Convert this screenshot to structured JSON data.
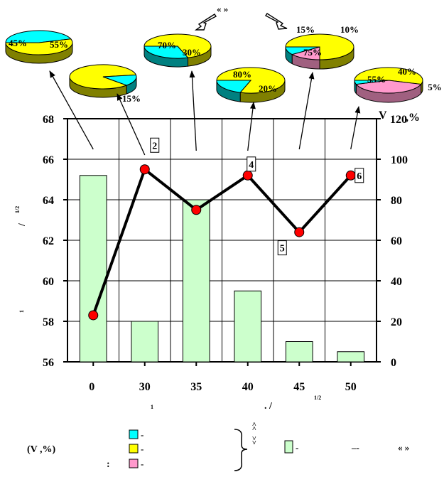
{
  "chart_data": {
    "type": "bar+line",
    "categories": [
      "0",
      "30",
      "35",
      "40",
      "45",
      "50"
    ],
    "left_axis": {
      "ticks": [
        "56",
        "58",
        "60",
        "62",
        "64",
        "66",
        "68"
      ],
      "ylim": [
        56,
        68
      ]
    },
    "right_axis": {
      "ticks": [
        "0",
        "20",
        "40",
        "60",
        "80",
        "100",
        "120"
      ],
      "ylim": [
        0,
        120
      ],
      "label": "V, %"
    },
    "bars": [
      92,
      20,
      80,
      35,
      10,
      5
    ],
    "line": [
      58.3,
      65.5,
      63.5,
      65.2,
      62.4,
      65.2
    ],
    "point_labels": [
      "2",
      "4",
      "5",
      "6"
    ],
    "pies": [
      {
        "cat": "0",
        "slices": [
          {
            "value": 45,
            "label": "45%",
            "color": "#00ffff"
          },
          {
            "value": 55,
            "label": "55%",
            "color": "#ffff00"
          }
        ]
      },
      {
        "cat": "30",
        "slices": [
          {
            "value": 85,
            "label": "",
            "color": "#ffff00"
          },
          {
            "value": 15,
            "label": "15%",
            "color": "#00ffff"
          }
        ]
      },
      {
        "cat": "35",
        "slices": [
          {
            "value": 70,
            "label": "70%",
            "color": "#ffff00"
          },
          {
            "value": 30,
            "label": "30%",
            "color": "#00ffff"
          }
        ]
      },
      {
        "cat": "40",
        "slices": [
          {
            "value": 80,
            "label": "80%",
            "color": "#ffff00"
          },
          {
            "value": 20,
            "label": "20%",
            "color": "#00ffff"
          }
        ]
      },
      {
        "cat": "45",
        "slices": [
          {
            "value": 75,
            "label": "75%",
            "color": "#ffff00"
          },
          {
            "value": 15,
            "label": "15%",
            "color": "#ff99cc"
          },
          {
            "value": 10,
            "label": "10%",
            "color": "#00ffff"
          }
        ]
      },
      {
        "cat": "50",
        "slices": [
          {
            "value": 55,
            "label": "55%",
            "color": "#ffff00"
          },
          {
            "value": 40,
            "label": "40%",
            "color": "#ff99cc"
          },
          {
            "value": 5,
            "label": "5%",
            "color": "#00ffff"
          }
        ]
      }
    ],
    "colors": {
      "bar": "#ccffcc",
      "line": "#000000",
      "marker": "#ff0000",
      "cyan": "#00ffff",
      "yellow": "#ffff00",
      "pink": "#ff99cc"
    }
  },
  "text": {
    "top_quote": "«   »",
    "left_axis_label_a": "/",
    "left_axis_label_sup": "1/2",
    "left_axis_label_b": "1",
    "x_label_sub": "1",
    "x_label_main": ".      /",
    "x_label_sup": "1/2",
    "right_axis_prefix": "V",
    "right_axis_unit": ",%",
    "legend_title": "(V      ,%)",
    "legend_dash": "-",
    "legend_colon": ":",
    "legend_arrows_up": "˄\n˄",
    "legend_arrows_down": "˅\n˅",
    "legend_bar_dash": "-",
    "legend_line_dash": "–-",
    "legend_quote": "«   »"
  }
}
